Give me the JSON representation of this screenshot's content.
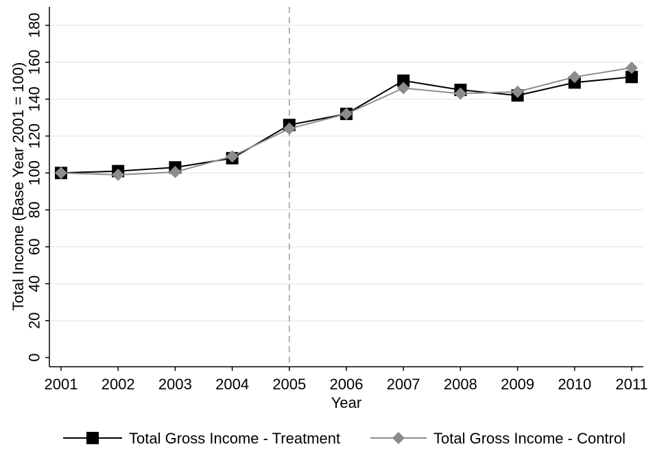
{
  "chart_data": {
    "type": "line",
    "title": "",
    "xlabel": "Year",
    "ylabel": "Total Income (Base Year 2001 = 100)",
    "x": [
      2001,
      2002,
      2003,
      2004,
      2005,
      2006,
      2007,
      2008,
      2009,
      2010,
      2011
    ],
    "x_tick_labels": [
      "2001",
      "2002",
      "2003",
      "2004",
      "2005",
      "2006",
      "2007",
      "2008",
      "2009",
      "2010",
      "2011"
    ],
    "y_ticks": [
      0,
      20,
      40,
      60,
      80,
      100,
      120,
      140,
      160,
      180
    ],
    "y_tick_labels": [
      "0",
      "20",
      "40",
      "60",
      "80",
      "100",
      "120",
      "140",
      "160",
      "180"
    ],
    "ylim": [
      -5,
      190
    ],
    "xlim": [
      2001,
      2011
    ],
    "grid": "horizontal",
    "reference_line": {
      "x": 2005,
      "style": "dashed"
    },
    "legend_position": "bottom",
    "series": [
      {
        "name": "Total Gross Income - Treatment",
        "marker": "square",
        "color": "#000000",
        "values": [
          100,
          101,
          103,
          108,
          126,
          132,
          150,
          145,
          142,
          149,
          152
        ]
      },
      {
        "name": "Total Gross Income - Control",
        "marker": "diamond",
        "color": "#8c8c8c",
        "values": [
          100,
          99,
          100.5,
          109,
          124,
          132,
          146,
          143,
          144,
          152,
          157
        ]
      }
    ]
  }
}
